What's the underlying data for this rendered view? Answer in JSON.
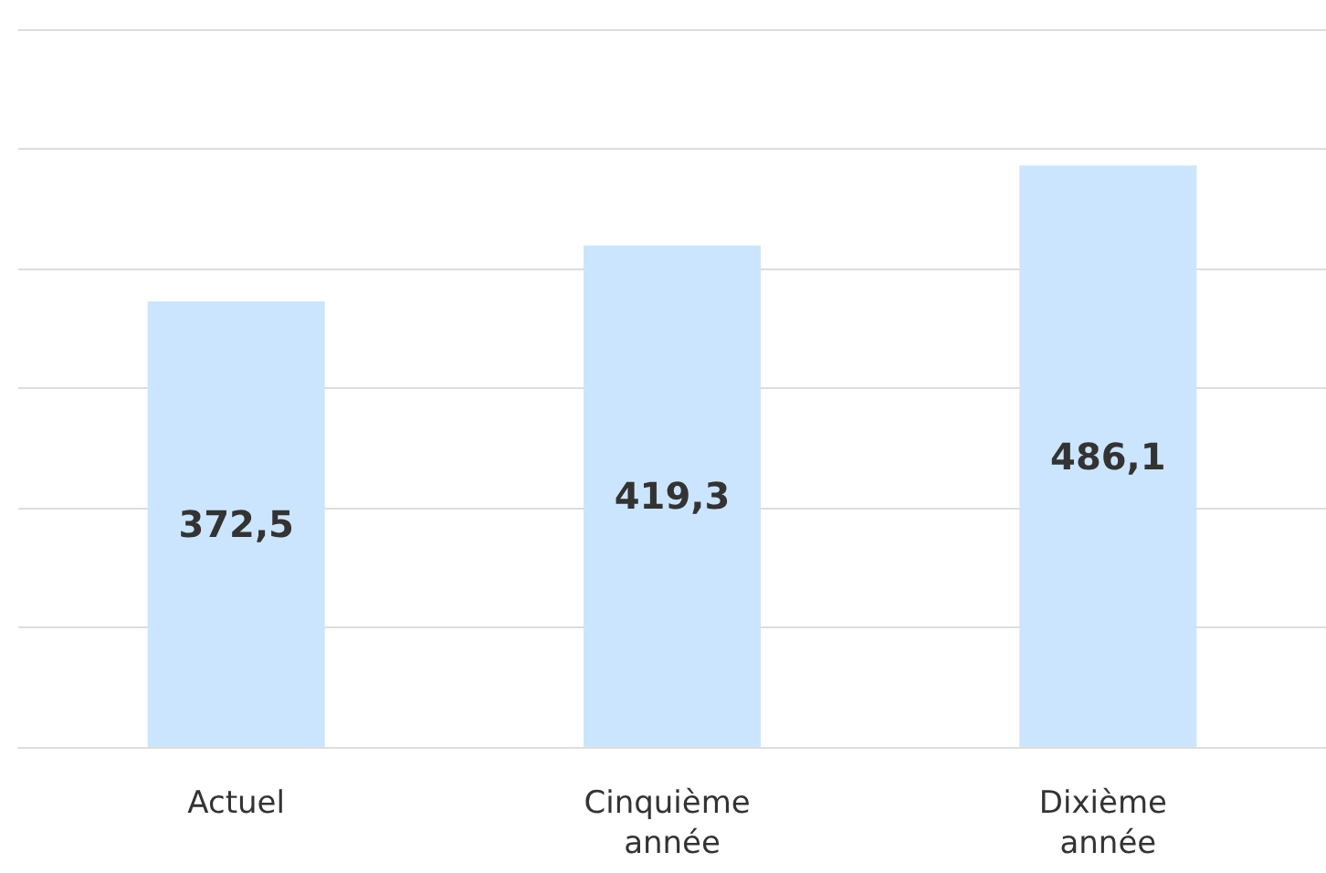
{
  "chart_data": {
    "type": "bar",
    "categories": [
      "Actuel",
      "Cinquième année",
      "Dixième année"
    ],
    "values": [
      372.5,
      419.3,
      486.1
    ],
    "color": "#cce5ff",
    "value_labels": [
      "372,5",
      "419,3",
      "486,1"
    ],
    "ylim": [
      0,
      600
    ],
    "yticks": [
      {
        "value": 0,
        "label": null
      },
      {
        "value": 100,
        "label": null
      },
      {
        "value": 200,
        "label": null
      },
      {
        "value": 300,
        "label": null
      },
      {
        "value": 400,
        "label": null
      },
      {
        "value": 500,
        "label": null
      },
      {
        "value": 600,
        "label": null
      }
    ],
    "grid": "y",
    "tick_labels": "x"
  }
}
